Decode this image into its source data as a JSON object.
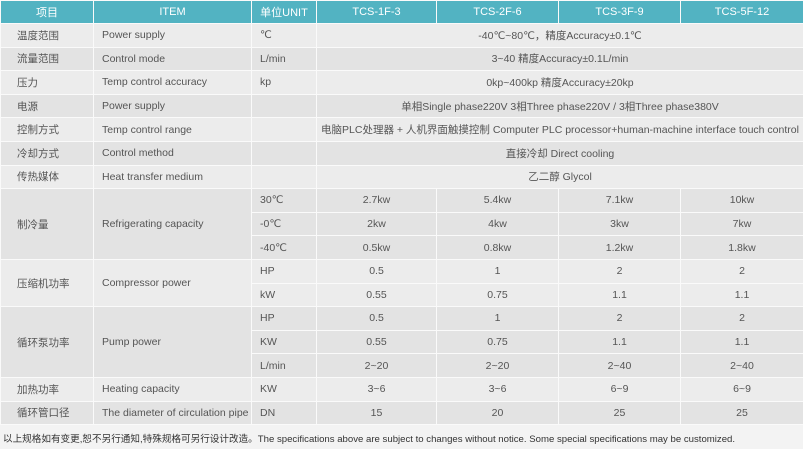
{
  "header": [
    "项目",
    "ITEM",
    "单位UNIT",
    "TCS-1F-3",
    "TCS-2F-6",
    "TCS-3F-9",
    "TCS-5F-12"
  ],
  "merged_rows": [
    {
      "cn": "温度范围",
      "en": "Power supply",
      "unit": "℃",
      "value": "-40℃~80℃，精度Accuracy±0.1℃"
    },
    {
      "cn": "流量范围",
      "en": "Control mode",
      "unit": "L/min",
      "value": "3~40 精度Accuracy±0.1L/min"
    },
    {
      "cn": "压力",
      "en": "Temp control accuracy",
      "unit": "kp",
      "value": "0kp~400kp  精度Accuracy±20kp"
    },
    {
      "cn": "电源",
      "en": "Power supply",
      "unit": "",
      "value": "单相Single phase220V   3相Three phase220V  / 3相Three phase380V"
    },
    {
      "cn": "控制方式",
      "en": "Temp control range",
      "unit": "",
      "value": "电脑PLC处理器 + 人机界面触摸控制 Computer PLC processor+human-machine interface touch control"
    },
    {
      "cn": "冷却方式",
      "en": "Control method",
      "unit": "",
      "value": "直接冷却 Direct cooling"
    },
    {
      "cn": "传热媒体",
      "en": "Heat transfer medium",
      "unit": "",
      "value": "乙二醇 Glycol"
    }
  ],
  "group_rows": [
    {
      "cn": "制冷量",
      "en": "Refrigerating capacity",
      "sub": [
        {
          "unit": "30℃",
          "values": [
            "2.7kw",
            "5.4kw",
            "7.1kw",
            "10kw"
          ]
        },
        {
          "unit": "-0℃",
          "values": [
            "2kw",
            "4kw",
            "3kw",
            "7kw"
          ]
        },
        {
          "unit": "-40℃",
          "values": [
            "0.5kw",
            "0.8kw",
            "1.2kw",
            "1.8kw"
          ]
        }
      ]
    },
    {
      "cn": "压缩机功率",
      "en": "Compressor power",
      "sub": [
        {
          "unit": "HP",
          "values": [
            "0.5",
            "1",
            "2",
            "2"
          ]
        },
        {
          "unit": "kW",
          "values": [
            "0.55",
            "0.75",
            "1.1",
            "1.1"
          ]
        }
      ]
    },
    {
      "cn": "循环泵功率",
      "en": "Pump power",
      "sub": [
        {
          "unit": "HP",
          "values": [
            "0.5",
            "1",
            "2",
            "2"
          ]
        },
        {
          "unit": "KW",
          "values": [
            "0.55",
            "0.75",
            "1.1",
            "1.1"
          ]
        },
        {
          "unit": "L/min",
          "values": [
            "2~20",
            "2~20",
            "2~40",
            "2~40"
          ]
        }
      ]
    },
    {
      "cn": "加热功率",
      "en": "Heating capacity",
      "sub": [
        {
          "unit": "KW",
          "values": [
            "3~6",
            "3~6",
            "6~9",
            "6~9"
          ]
        }
      ]
    },
    {
      "cn": "循环管口径",
      "en": "The diameter of circulation pipe",
      "sub": [
        {
          "unit": "DN",
          "values": [
            "15",
            "20",
            "25",
            "25"
          ]
        }
      ]
    }
  ],
  "footnote": "以上规格如有变更,恕不另行通知,特殊规格可另行设计改造。The specifications above are subject to changes without notice. Some special specifications may be customized.",
  "colors": {
    "header": "#52b3c2",
    "row": "#ececec",
    "row_alt": "#e3e3e3"
  }
}
